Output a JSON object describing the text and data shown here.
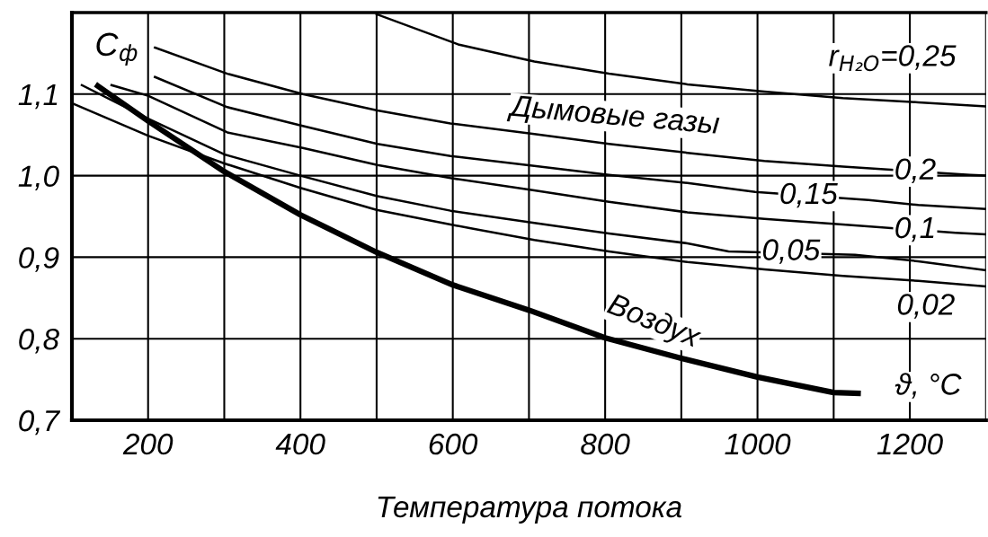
{
  "chart_data": {
    "type": "line",
    "xlabel": "Температура потока",
    "ylabel": "C$_{ф}$",
    "annotations": [
      "Дымовые газы",
      "ϑ, °C"
    ],
    "xlim": [
      100,
      1300
    ],
    "ylim": [
      0.7,
      1.2
    ],
    "xticks": [
      {
        "value": 100,
        "label": null
      },
      200,
      {
        "value": 300,
        "label": null
      },
      400,
      {
        "value": 500,
        "label": null
      },
      600,
      {
        "value": 700,
        "label": null
      },
      800,
      {
        "value": 900,
        "label": null
      },
      1000,
      {
        "value": 1100,
        "label": null
      },
      1200,
      {
        "value": 1300,
        "label": null
      }
    ],
    "yticks": [
      {
        "value": 0.7,
        "label": "0,7"
      },
      {
        "value": 0.8,
        "label": "0,8"
      },
      {
        "value": 0.9,
        "label": "0,9"
      },
      {
        "value": 1.0,
        "label": "1,0"
      },
      {
        "value": 1.1,
        "label": "1,1"
      }
    ],
    "grid": true,
    "series": [
      {
        "name": "r$_{H₂O}$=0,25",
        "color": "#000000",
        "x": [
          500,
          607,
          707,
          805,
          908,
          1009,
          1112,
          1211,
          1300
        ],
        "values": [
          1.198,
          1.161,
          1.14,
          1.125,
          1.112,
          1.103,
          1.095,
          1.09,
          1.085
        ]
      },
      {
        "name": "0,2",
        "color": "#000000",
        "x": [
          209,
          304,
          403,
          501,
          597,
          707,
          805,
          908,
          1009,
          1112,
          1279,
          1300
        ],
        "values": [
          1.157,
          1.125,
          1.1,
          1.08,
          1.064,
          1.051,
          1.039,
          1.028,
          1.018,
          1.011,
          1.001,
          1.0
        ]
      },
      {
        "name": "0,15",
        "color": "#000000",
        "x": [
          209,
          304,
          403,
          501,
          597,
          707,
          805,
          908,
          997,
          1146,
          1211,
          1300
        ],
        "values": [
          1.121,
          1.084,
          1.061,
          1.039,
          1.024,
          1.012,
          1.001,
          0.991,
          0.98,
          0.97,
          0.964,
          0.959
        ]
      },
      {
        "name": "0,1",
        "color": "#000000",
        "x": [
          152,
          200,
          304,
          403,
          501,
          597,
          707,
          805,
          908,
          1009,
          1112,
          1260,
          1300
        ],
        "values": [
          1.111,
          1.098,
          1.053,
          1.034,
          1.013,
          0.997,
          0.982,
          0.968,
          0.955,
          0.947,
          0.94,
          0.93,
          0.928
        ]
      },
      {
        "name": "0,05",
        "color": "#000000",
        "x": [
          113,
          200,
          300,
          400,
          500,
          597,
          707,
          805,
          908,
          962,
          1128,
          1211,
          1300
        ],
        "values": [
          1.111,
          1.07,
          1.026,
          1.0,
          0.975,
          0.957,
          0.942,
          0.929,
          0.917,
          0.907,
          0.903,
          0.895,
          0.884
        ]
      },
      {
        "name": "0,02",
        "color": "#000000",
        "x": [
          102,
          200,
          300,
          400,
          500,
          597,
          707,
          805,
          908,
          1009,
          1112,
          1211,
          1300
        ],
        "values": [
          1.088,
          1.049,
          1.015,
          0.985,
          0.958,
          0.94,
          0.921,
          0.907,
          0.894,
          0.885,
          0.877,
          0.871,
          0.864
        ]
      },
      {
        "name": "Воздух",
        "color": "#000000",
        "x": [
          134,
          200,
          300,
          400,
          500,
          600,
          700,
          800,
          900,
          1000,
          1100,
          1132
        ],
        "values": [
          1.11,
          1.067,
          1.005,
          0.952,
          0.906,
          0.866,
          0.835,
          0.801,
          0.776,
          0.753,
          0.734,
          0.733
        ]
      }
    ]
  }
}
